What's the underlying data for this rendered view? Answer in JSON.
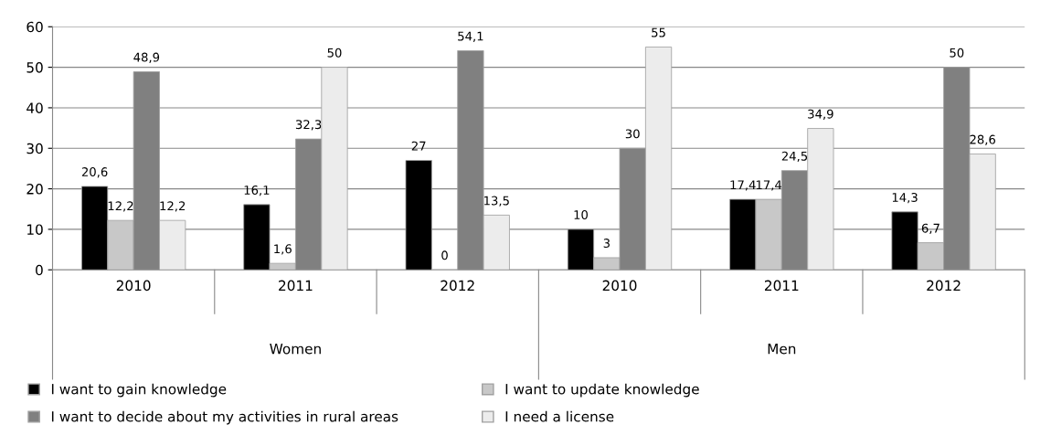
{
  "chart_data": {
    "type": "bar",
    "categories": [
      "2010",
      "2011",
      "2012",
      "2010",
      "2011",
      "2012"
    ],
    "series": [
      {
        "name": "I want to gain knowledge",
        "color": "#000000",
        "values": [
          20.6,
          16.1,
          27,
          10,
          17.4,
          14.3
        ],
        "value_labels": [
          "20,6",
          "16,1",
          "27",
          "10",
          "17,4",
          "14,3"
        ]
      },
      {
        "name": "I want to update knowledge",
        "color": "#c8c8c8",
        "values": [
          12.2,
          1.6,
          0,
          3,
          17.4,
          6.7
        ],
        "value_labels": [
          "12,2",
          "1,6",
          "0",
          "3",
          "17,4",
          "6,7"
        ]
      },
      {
        "name": "I want to decide about my activities in rural areas",
        "color": "#808080",
        "values": [
          48.9,
          32.3,
          54.1,
          30,
          24.5,
          50
        ],
        "value_labels": [
          "48,9",
          "32,3",
          "54,1",
          "30",
          "24,5",
          "50"
        ]
      },
      {
        "name": "I need a license",
        "color": "#ececec",
        "values": [
          12.2,
          50,
          13.5,
          55,
          34.9,
          28.6
        ],
        "value_labels": [
          "12,2",
          "50",
          "13,5",
          "55",
          "34,9",
          "28,6"
        ]
      }
    ],
    "annotations": [
      "Women",
      "Men"
    ],
    "ylim": [
      0,
      60
    ],
    "yticks": [
      0,
      10,
      20,
      30,
      40,
      50,
      60
    ],
    "grid": "y",
    "legend": "bottom"
  }
}
